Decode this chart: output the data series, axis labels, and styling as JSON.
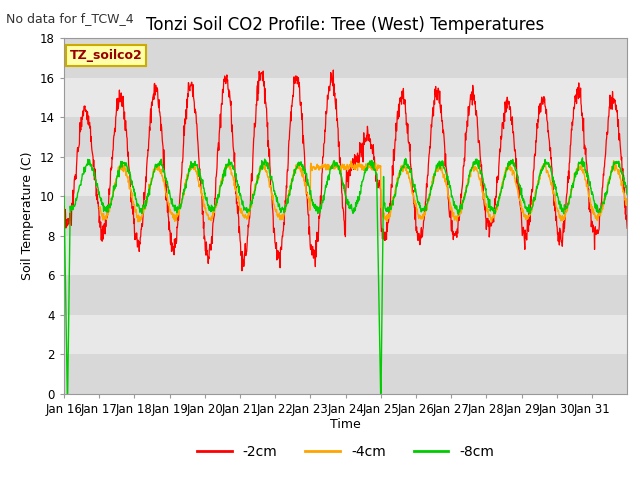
{
  "title": "Tonzi Soil CO2 Profile: Tree (West) Temperatures",
  "no_data_label": "No data for f_TCW_4",
  "station_label": "TZ_soilco2",
  "ylabel": "Soil Temperature (C)",
  "xlabel": "Time",
  "ylim": [
    0,
    18
  ],
  "yticks": [
    0,
    2,
    4,
    6,
    8,
    10,
    12,
    14,
    16,
    18
  ],
  "xtick_labels": [
    "Jan 16",
    "Jan 17",
    "Jan 18",
    "Jan 19",
    "Jan 20",
    "Jan 21",
    "Jan 22",
    "Jan 23",
    "Jan 24",
    "Jan 25",
    "Jan 26",
    "Jan 27",
    "Jan 28",
    "Jan 29",
    "Jan 30",
    "Jan 31"
  ],
  "line_colors": {
    "m2cm": "#ff0000",
    "m4cm": "#ffa500",
    "m8cm": "#00cc00"
  },
  "legend_labels": [
    "-2cm",
    "-4cm",
    "-8cm"
  ],
  "background_color": "#ffffff",
  "band_colors": [
    "#d8d8d8",
    "#e8e8e8"
  ],
  "title_fontsize": 12,
  "label_fontsize": 9,
  "tick_fontsize": 8.5,
  "no_data_fontsize": 9,
  "station_fontsize": 9
}
